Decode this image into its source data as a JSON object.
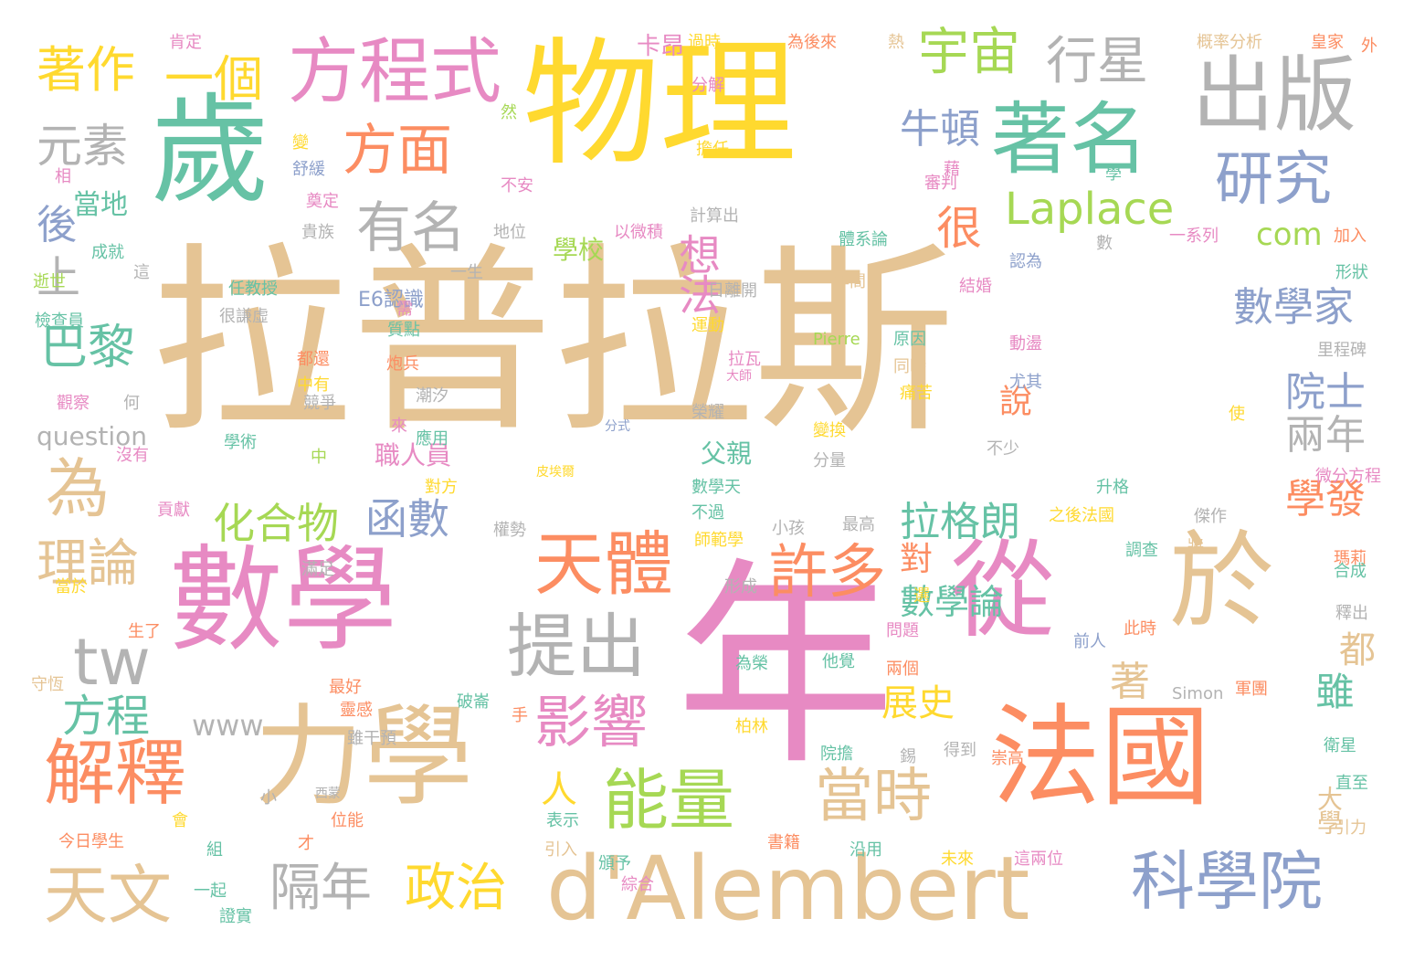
{
  "colors": {
    "tan": "#E5C494",
    "pink": "#E78AC3",
    "yellow": "#FFD92F",
    "green": "#66C2A5",
    "orange": "#FC8D62",
    "lime": "#A6D854",
    "blue": "#8DA0CB",
    "gray": "#B3B3B3"
  },
  "words": [
    {
      "text": "拉普拉斯",
      "color": "tan"
    },
    {
      "text": "年",
      "color": "pink"
    },
    {
      "text": "物理",
      "color": "yellow"
    },
    {
      "text": "歲",
      "color": "green"
    },
    {
      "text": "數學",
      "color": "pink"
    },
    {
      "text": "力學",
      "color": "tan"
    },
    {
      "text": "法國",
      "color": "orange"
    },
    {
      "text": "從",
      "color": "pink"
    },
    {
      "text": "於",
      "color": "tan"
    },
    {
      "text": "d'Alembert",
      "color": "tan"
    },
    {
      "text": "出版",
      "color": "gray"
    },
    {
      "text": "著名",
      "color": "green"
    },
    {
      "text": "方程式",
      "color": "pink"
    },
    {
      "text": "天體",
      "color": "orange"
    },
    {
      "text": "解釋",
      "color": "orange"
    },
    {
      "text": "提出",
      "color": "gray"
    },
    {
      "text": "能量",
      "color": "lime"
    },
    {
      "text": "科學院",
      "color": "blue"
    },
    {
      "text": "天文",
      "color": "tan"
    },
    {
      "text": "研究",
      "color": "blue"
    },
    {
      "text": "許多",
      "color": "orange"
    },
    {
      "text": "影響",
      "color": "pink"
    },
    {
      "text": "當時",
      "color": "tan"
    },
    {
      "text": "方面",
      "color": "orange"
    },
    {
      "text": "有名",
      "color": "gray"
    },
    {
      "text": "宇宙",
      "color": "lime"
    },
    {
      "text": "行星",
      "color": "gray"
    },
    {
      "text": "著作",
      "color": "yellow"
    },
    {
      "text": "一個",
      "color": "yellow"
    },
    {
      "text": "元素",
      "color": "gray"
    },
    {
      "text": "Laplace",
      "color": "lime"
    },
    {
      "text": "牛頓",
      "color": "blue"
    },
    {
      "text": "很",
      "color": "orange"
    },
    {
      "text": "巴黎",
      "color": "green"
    },
    {
      "text": "上",
      "color": "gray"
    },
    {
      "text": "為",
      "color": "tan"
    },
    {
      "text": "理論",
      "color": "tan"
    },
    {
      "text": "tw",
      "color": "gray"
    },
    {
      "text": "方程",
      "color": "green"
    },
    {
      "text": "化合物",
      "color": "lime"
    },
    {
      "text": "函數",
      "color": "blue"
    },
    {
      "text": "拉格朗",
      "color": "green"
    },
    {
      "text": "數學家",
      "color": "blue"
    },
    {
      "text": "院士",
      "color": "blue"
    },
    {
      "text": "兩年",
      "color": "gray"
    },
    {
      "text": "學發",
      "color": "orange"
    },
    {
      "text": "隔年",
      "color": "gray"
    },
    {
      "text": "政治",
      "color": "yellow"
    },
    {
      "text": "想法",
      "color": "pink"
    },
    {
      "text": "學校",
      "color": "lime"
    },
    {
      "text": "com",
      "color": "lime"
    },
    {
      "text": "當地",
      "color": "green"
    },
    {
      "text": "後",
      "color": "blue"
    },
    {
      "text": "數學論",
      "color": "green"
    },
    {
      "text": "展史",
      "color": "yellow"
    },
    {
      "text": "說",
      "color": "orange"
    },
    {
      "text": "職人員",
      "color": "pink"
    },
    {
      "text": "父親",
      "color": "green"
    },
    {
      "text": "對",
      "color": "orange"
    },
    {
      "text": "人",
      "color": "yellow"
    },
    {
      "text": "著",
      "color": "tan"
    },
    {
      "text": "雖",
      "color": "green"
    },
    {
      "text": "都",
      "color": "tan"
    },
    {
      "text": "www",
      "color": "gray"
    },
    {
      "text": "卡昂",
      "color": "pink"
    },
    {
      "text": "E6認識",
      "color": "blue"
    },
    {
      "text": "question",
      "color": "gray"
    },
    {
      "text": "大學",
      "color": "tan"
    },
    {
      "text": "引力",
      "color": "tan"
    },
    {
      "text": "肯定",
      "color": "pink"
    },
    {
      "text": "過時",
      "color": "yellow"
    },
    {
      "text": "為後來",
      "color": "orange"
    },
    {
      "text": "概率分析",
      "color": "tan"
    },
    {
      "text": "皇家",
      "color": "orange"
    },
    {
      "text": "熱",
      "color": "tan"
    },
    {
      "text": "外",
      "color": "orange"
    },
    {
      "text": "分解",
      "color": "pink"
    },
    {
      "text": "擔任",
      "color": "yellow"
    },
    {
      "text": "審判",
      "color": "pink"
    },
    {
      "text": "計算出",
      "color": "gray"
    },
    {
      "text": "體系論",
      "color": "green"
    },
    {
      "text": "一系列",
      "color": "pink"
    },
    {
      "text": "加入",
      "color": "orange"
    },
    {
      "text": "形狀",
      "color": "green"
    },
    {
      "text": "認為",
      "color": "blue"
    },
    {
      "text": "數",
      "color": "gray"
    },
    {
      "text": "以微積",
      "color": "pink"
    },
    {
      "text": "地位",
      "color": "gray"
    },
    {
      "text": "貴族",
      "color": "gray"
    },
    {
      "text": "奠定",
      "color": "pink"
    },
    {
      "text": "舒緩",
      "color": "blue"
    },
    {
      "text": "不安",
      "color": "pink"
    },
    {
      "text": "成就",
      "color": "green"
    },
    {
      "text": "逝世",
      "color": "lime"
    },
    {
      "text": "任教授",
      "color": "green"
    },
    {
      "text": "很謙虛",
      "color": "gray"
    },
    {
      "text": "一生",
      "color": "gray"
    },
    {
      "text": "年間",
      "color": "tan"
    },
    {
      "text": "日離開",
      "color": "gray"
    },
    {
      "text": "結婚",
      "color": "pink"
    },
    {
      "text": "檢查員",
      "color": "green"
    },
    {
      "text": "運動",
      "color": "yellow"
    },
    {
      "text": "原因",
      "color": "green"
    },
    {
      "text": "動盪",
      "color": "pink"
    },
    {
      "text": "里程碑",
      "color": "gray"
    },
    {
      "text": "Pierre",
      "color": "lime"
    },
    {
      "text": "質點",
      "color": "green"
    },
    {
      "text": "炮兵",
      "color": "orange"
    },
    {
      "text": "拉瓦",
      "color": "pink"
    },
    {
      "text": "同時",
      "color": "tan"
    },
    {
      "text": "中有",
      "color": "yellow"
    },
    {
      "text": "都還",
      "color": "orange"
    },
    {
      "text": "觀察",
      "color": "pink"
    },
    {
      "text": "競爭",
      "color": "gray"
    },
    {
      "text": "潮汐",
      "color": "gray"
    },
    {
      "text": "尤其",
      "color": "blue"
    },
    {
      "text": "痛苦",
      "color": "yellow"
    },
    {
      "text": "應用",
      "color": "green"
    },
    {
      "text": "榮耀",
      "color": "gray"
    },
    {
      "text": "分式",
      "color": "blue"
    },
    {
      "text": "使",
      "color": "yellow"
    },
    {
      "text": "變換",
      "color": "yellow"
    },
    {
      "text": "學術",
      "color": "green"
    },
    {
      "text": "沒有",
      "color": "pink"
    },
    {
      "text": "分量",
      "color": "gray"
    },
    {
      "text": "不少",
      "color": "gray"
    },
    {
      "text": "皮埃爾",
      "color": "yellow"
    },
    {
      "text": "數學天",
      "color": "green"
    },
    {
      "text": "升格",
      "color": "green"
    },
    {
      "text": "微分方程",
      "color": "pink"
    },
    {
      "text": "對方",
      "color": "yellow"
    },
    {
      "text": "貢獻",
      "color": "pink"
    },
    {
      "text": "權勢",
      "color": "gray"
    },
    {
      "text": "不過",
      "color": "green"
    },
    {
      "text": "師範學",
      "color": "yellow"
    },
    {
      "text": "小孩",
      "color": "gray"
    },
    {
      "text": "最高",
      "color": "gray"
    },
    {
      "text": "之後法國",
      "color": "yellow"
    },
    {
      "text": "傑作",
      "color": "gray"
    },
    {
      "text": "調查",
      "color": "green"
    },
    {
      "text": "滿足",
      "color": "gray"
    },
    {
      "text": "瑪莉",
      "color": "orange"
    },
    {
      "text": "合成",
      "color": "green"
    },
    {
      "text": "當於",
      "color": "yellow"
    },
    {
      "text": "形成",
      "color": "gray"
    },
    {
      "text": "生了",
      "color": "orange"
    },
    {
      "text": "問題",
      "color": "pink"
    },
    {
      "text": "此時",
      "color": "orange"
    },
    {
      "text": "釋出",
      "color": "gray"
    },
    {
      "text": "守恆",
      "color": "tan"
    },
    {
      "text": "為榮",
      "color": "green"
    },
    {
      "text": "他覺",
      "color": "green"
    },
    {
      "text": "兩個",
      "color": "orange"
    },
    {
      "text": "前人",
      "color": "blue"
    },
    {
      "text": "最好",
      "color": "orange"
    },
    {
      "text": "靈感",
      "color": "orange"
    },
    {
      "text": "破崙",
      "color": "green"
    },
    {
      "text": "Simon",
      "color": "gray"
    },
    {
      "text": "軍團",
      "color": "orange"
    },
    {
      "text": "衛星",
      "color": "green"
    },
    {
      "text": "柏林",
      "color": "yellow"
    },
    {
      "text": "院擔",
      "color": "green"
    },
    {
      "text": "雖干預",
      "color": "gray"
    },
    {
      "text": "得到",
      "color": "gray"
    },
    {
      "text": "崇高",
      "color": "orange"
    },
    {
      "text": "直至",
      "color": "green"
    },
    {
      "text": "西蒙",
      "color": "gray"
    },
    {
      "text": "位能",
      "color": "orange"
    },
    {
      "text": "表示",
      "color": "green"
    },
    {
      "text": "今日學生",
      "color": "orange"
    },
    {
      "text": "引入",
      "color": "tan"
    },
    {
      "text": "書籍",
      "color": "orange"
    },
    {
      "text": "沿用",
      "color": "green"
    },
    {
      "text": "未來",
      "color": "yellow"
    },
    {
      "text": "這兩位",
      "color": "pink"
    },
    {
      "text": "頒予",
      "color": "green"
    },
    {
      "text": "綜合",
      "color": "pink"
    },
    {
      "text": "證實",
      "color": "green"
    },
    {
      "text": "一起",
      "color": "green"
    },
    {
      "text": "組",
      "color": "green"
    },
    {
      "text": "才",
      "color": "orange"
    },
    {
      "text": "小",
      "color": "gray"
    },
    {
      "text": "相",
      "color": "pink"
    },
    {
      "text": "變",
      "color": "yellow"
    },
    {
      "text": "然",
      "color": "lime"
    },
    {
      "text": "學",
      "color": "green"
    },
    {
      "text": "藉",
      "color": "pink"
    },
    {
      "text": "選",
      "color": "yellow"
    },
    {
      "text": "這",
      "color": "gray"
    },
    {
      "text": "需",
      "color": "pink"
    },
    {
      "text": "來",
      "color": "pink"
    },
    {
      "text": "中",
      "color": "lime"
    },
    {
      "text": "手",
      "color": "orange"
    },
    {
      "text": "將",
      "color": "tan"
    },
    {
      "text": "會",
      "color": "yellow"
    },
    {
      "text": "錫",
      "color": "gray"
    },
    {
      "text": "大師",
      "color": "pink"
    },
    {
      "text": "何",
      "color": "gray"
    }
  ]
}
